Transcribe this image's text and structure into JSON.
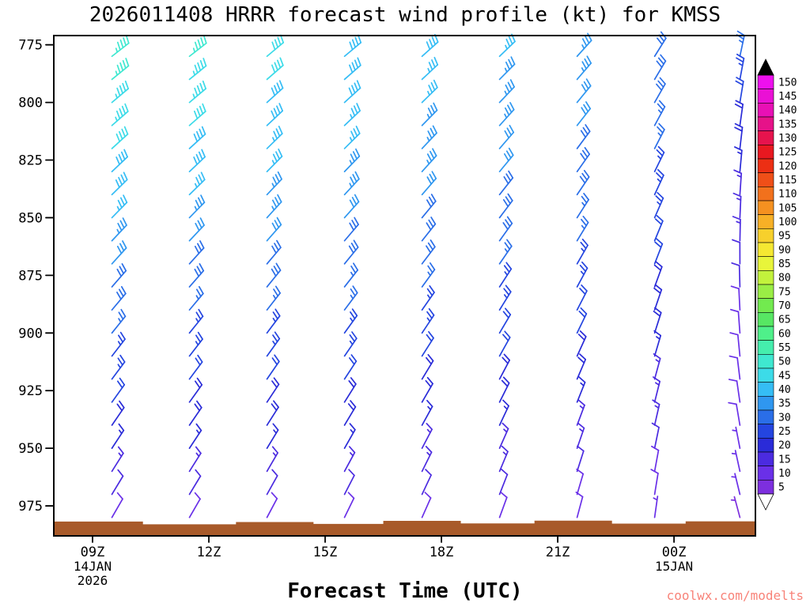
{
  "title": "2026011408 HRRR forecast wind profile (kt) for KMSS",
  "x_axis": {
    "label": "Forecast Time (UTC)",
    "ticks": [
      {
        "hour": 9,
        "label": "09Z"
      },
      {
        "hour": 12,
        "label": "12Z"
      },
      {
        "hour": 15,
        "label": "15Z"
      },
      {
        "hour": 18,
        "label": "18Z"
      },
      {
        "hour": 21,
        "label": "21Z"
      },
      {
        "hour": 24,
        "label": "00Z"
      }
    ],
    "date_labels": [
      {
        "hour": 9,
        "lines": [
          "14JAN",
          "2026"
        ]
      },
      {
        "hour": 24,
        "lines": [
          "15JAN"
        ]
      }
    ]
  },
  "y_axis": {
    "tick_values_mb": [
      775,
      800,
      825,
      850,
      875,
      900,
      925,
      950,
      975
    ]
  },
  "watermark": {
    "text": "coolwx.com/modelts",
    "color": "#f88379"
  },
  "colorbar": {
    "tick_values": [
      5,
      10,
      15,
      20,
      25,
      30,
      35,
      40,
      45,
      50,
      55,
      60,
      65,
      70,
      75,
      80,
      85,
      90,
      95,
      100,
      105,
      110,
      115,
      120,
      125,
      130,
      135,
      140,
      145,
      150
    ],
    "segment_colors_low_to_high": [
      "#7d2fde",
      "#6a30e8",
      "#4b2be0",
      "#2a2bd8",
      "#2445e0",
      "#2a6ee8",
      "#2f97f0",
      "#35bdf5",
      "#3cdbe8",
      "#3fe8d0",
      "#45eead",
      "#4ff08a",
      "#57e763",
      "#72ea4f",
      "#9aee45",
      "#c2f23c",
      "#e8f53a",
      "#f5e832",
      "#f7d02c",
      "#f7b026",
      "#f59120",
      "#f2711c",
      "#ef4f18",
      "#ec2f14",
      "#e81820",
      "#e6134d",
      "#e61289",
      "#e810b5",
      "#ea10d5",
      "#ee10ee"
    ],
    "over_color": "#000000",
    "under_color": "#ffffff"
  },
  "chart_data": {
    "type": "wind-barb-profile",
    "model": "HRRR",
    "station": "KMSS",
    "init_time": "2026011408",
    "x_range_hours": [
      8.0,
      26.1
    ],
    "y_range_mb": [
      771,
      988
    ],
    "levels_mb": [
      780,
      790,
      800,
      810,
      820,
      830,
      840,
      850,
      860,
      870,
      880,
      890,
      900,
      910,
      920,
      930,
      940,
      950,
      960,
      970,
      980
    ],
    "columns": [
      {
        "hour": 9.5,
        "dir_from_deg_top": 52,
        "dir_from_deg_bottom": 30,
        "speeds_kt": [
          47,
          46,
          45,
          44,
          42,
          40,
          38,
          36,
          34,
          32,
          30,
          28,
          26,
          25,
          23,
          21,
          19,
          17,
          14,
          12,
          10
        ]
      },
      {
        "hour": 11.5,
        "dir_from_deg_top": 52,
        "dir_from_deg_bottom": 30,
        "speeds_kt": [
          46,
          45,
          43,
          42,
          40,
          38,
          36,
          34,
          32,
          30,
          29,
          27,
          25,
          24,
          22,
          20,
          18,
          16,
          14,
          12,
          10
        ]
      },
      {
        "hour": 13.5,
        "dir_from_deg_top": 50,
        "dir_from_deg_bottom": 28,
        "speeds_kt": [
          42,
          41,
          40,
          38,
          37,
          36,
          34,
          33,
          31,
          30,
          28,
          27,
          25,
          23,
          22,
          20,
          18,
          16,
          14,
          12,
          9
        ]
      },
      {
        "hour": 15.5,
        "dir_from_deg_top": 50,
        "dir_from_deg_bottom": 26,
        "speeds_kt": [
          40,
          39,
          38,
          37,
          36,
          35,
          34,
          32,
          30,
          29,
          27,
          26,
          24,
          23,
          21,
          20,
          18,
          16,
          14,
          12,
          9
        ]
      },
      {
        "hour": 17.5,
        "dir_from_deg_top": 48,
        "dir_from_deg_bottom": 24,
        "speeds_kt": [
          38,
          37,
          36,
          35,
          34,
          33,
          32,
          30,
          29,
          28,
          26,
          25,
          23,
          22,
          20,
          19,
          17,
          15,
          13,
          12,
          8
        ]
      },
      {
        "hour": 19.5,
        "dir_from_deg_top": 46,
        "dir_from_deg_bottom": 20,
        "speeds_kt": [
          36,
          35,
          34,
          33,
          32,
          31,
          30,
          29,
          28,
          26,
          25,
          24,
          22,
          21,
          19,
          18,
          16,
          14,
          13,
          11,
          8
        ]
      },
      {
        "hour": 21.5,
        "dir_from_deg_top": 42,
        "dir_from_deg_bottom": 15,
        "speeds_kt": [
          34,
          33,
          32,
          31,
          30,
          29,
          28,
          27,
          26,
          25,
          24,
          22,
          21,
          19,
          18,
          16,
          15,
          13,
          12,
          10,
          8
        ]
      },
      {
        "hour": 23.5,
        "dir_from_deg_top": 32,
        "dir_from_deg_bottom": 8,
        "speeds_kt": [
          30,
          29,
          28,
          27,
          26,
          25,
          24,
          23,
          22,
          21,
          20,
          19,
          18,
          17,
          15,
          14,
          13,
          11,
          10,
          9,
          7
        ]
      },
      {
        "hour": 25.7,
        "dir_from_deg_top": 12,
        "dir_from_deg_bottom": -15,
        "speeds_kt": [
          26,
          24,
          22,
          20,
          18,
          16,
          15,
          14,
          13,
          12,
          11,
          10,
          10,
          9,
          9,
          8,
          8,
          7,
          7,
          6,
          5
        ]
      }
    ],
    "terrain": {
      "color": "#a85a2a",
      "base_mb": 988,
      "steps": [
        [
          8.0,
          981.8
        ],
        [
          10.3,
          983.0
        ],
        [
          12.7,
          982.0
        ],
        [
          14.7,
          982.8
        ],
        [
          16.5,
          981.5
        ],
        [
          18.5,
          982.6
        ],
        [
          20.4,
          981.4
        ],
        [
          22.4,
          982.7
        ],
        [
          24.3,
          981.7
        ],
        [
          26.1,
          981.7
        ]
      ]
    }
  }
}
